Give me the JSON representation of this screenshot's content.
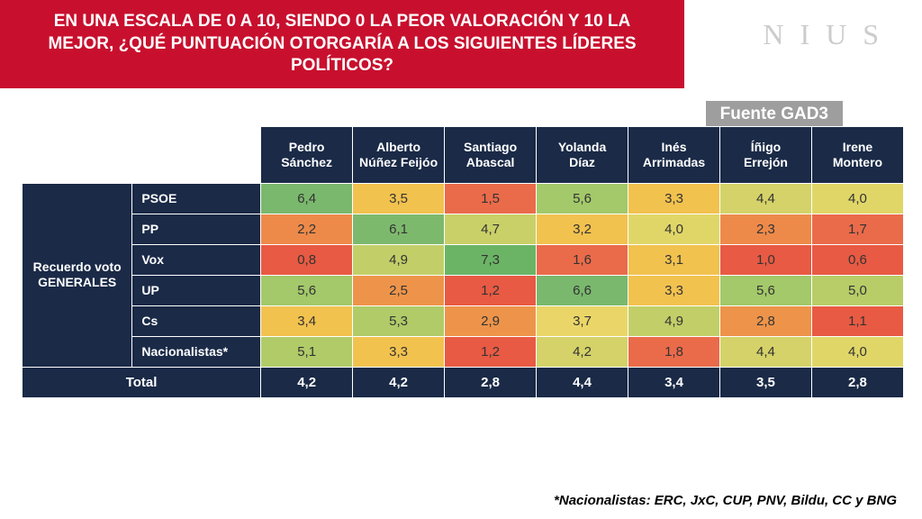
{
  "title": "EN UNA ESCALA DE 0 A 10, SIENDO 0 LA PEOR VALORACIÓN Y 10 LA MEJOR, ¿QUÉ PUNTUACIÓN OTORGARÍA A LOS SIGUIENTES LÍDERES POLÍTICOS?",
  "brand": "NIUS",
  "source": "Fuente GAD3",
  "footnote": "*Nacionalistas: ERC, JxC, CUP, PNV, Bildu, CC y BNG",
  "row_group_label": "Recuerdo voto GENERALES",
  "total_label": "Total",
  "colors": {
    "banner_bg": "#c8102e",
    "header_bg": "#1a2a47",
    "brand_text": "#cccccc",
    "source_bg": "#9e9e9e"
  },
  "heatmap": {
    "type": "table-heatmap",
    "scale_min": 0,
    "scale_max": 10,
    "color_low": "#ea5a47",
    "color_mid": "#f8d568",
    "color_high": "#7ab86d"
  },
  "leaders": [
    "Pedro Sánchez",
    "Alberto Núñez Feijóo",
    "Santiago Abascal",
    "Yolanda Díaz",
    "Inés Arrimadas",
    "Íñigo Errejón",
    "Irene Montero"
  ],
  "rows": [
    {
      "label": "PSOE",
      "values": [
        "6,4",
        "3,5",
        "1,5",
        "5,6",
        "3,3",
        "4,4",
        "4,0"
      ],
      "cell_colors": [
        "#7ab86d",
        "#f2c24f",
        "#ea6b4a",
        "#a3c96a",
        "#f2c24f",
        "#d4d268",
        "#e0d668"
      ]
    },
    {
      "label": "PP",
      "values": [
        "2,2",
        "6,1",
        "4,7",
        "3,2",
        "4,0",
        "2,3",
        "1,7"
      ],
      "cell_colors": [
        "#ed8a4a",
        "#7db96d",
        "#c9d068",
        "#f2c24f",
        "#e0d668",
        "#ed8a4a",
        "#ea6b4a"
      ]
    },
    {
      "label": "Vox",
      "values": [
        "0,8",
        "4,9",
        "7,3",
        "1,6",
        "3,1",
        "1,0",
        "0,6"
      ],
      "cell_colors": [
        "#e85a43",
        "#c2cf68",
        "#6bb465",
        "#ea6b4a",
        "#f2c24f",
        "#e85a43",
        "#e85a43"
      ]
    },
    {
      "label": "UP",
      "values": [
        "5,6",
        "2,5",
        "1,2",
        "6,6",
        "3,3",
        "5,6",
        "5,0"
      ],
      "cell_colors": [
        "#a3c96a",
        "#ed944a",
        "#e85a43",
        "#7ab86d",
        "#f2c24f",
        "#a3c96a",
        "#b8cd68"
      ]
    },
    {
      "label": "Cs",
      "values": [
        "3,4",
        "5,3",
        "2,9",
        "3,7",
        "4,9",
        "2,8",
        "1,1"
      ],
      "cell_colors": [
        "#f2c24f",
        "#b0cb68",
        "#ed944a",
        "#ead668",
        "#c2cf68",
        "#ed944a",
        "#e85a43"
      ]
    },
    {
      "label": "Nacionalistas*",
      "values": [
        "5,1",
        "3,3",
        "1,2",
        "4,2",
        "1,8",
        "4,4",
        "4,0"
      ],
      "cell_colors": [
        "#b0cb68",
        "#f2c24f",
        "#e85a43",
        "#d4d268",
        "#ea6b4a",
        "#d4d268",
        "#e0d668"
      ]
    }
  ],
  "totals": [
    "4,2",
    "4,2",
    "2,8",
    "4,4",
    "3,4",
    "3,5",
    "2,8"
  ]
}
